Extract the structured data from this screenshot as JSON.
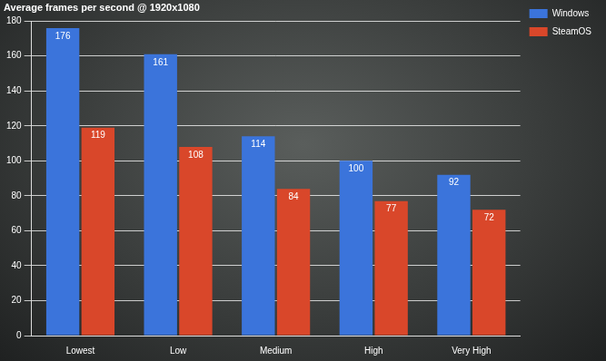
{
  "chart_data": {
    "type": "bar",
    "title": "Average frames per second @ 1920x1080",
    "categories": [
      "Lowest",
      "Low",
      "Medium",
      "High",
      "Very High"
    ],
    "series": [
      {
        "name": "Windows",
        "color": "#3b74db",
        "values": [
          176,
          161,
          114,
          100,
          92
        ]
      },
      {
        "name": "SteamOS",
        "color": "#d9472a",
        "values": [
          119,
          108,
          84,
          77,
          72
        ]
      }
    ],
    "ylim": [
      0,
      180
    ],
    "yticks": [
      0,
      20,
      40,
      60,
      80,
      100,
      120,
      140,
      160,
      180
    ],
    "grid": true,
    "legend": "top-right",
    "data_labels": true
  }
}
